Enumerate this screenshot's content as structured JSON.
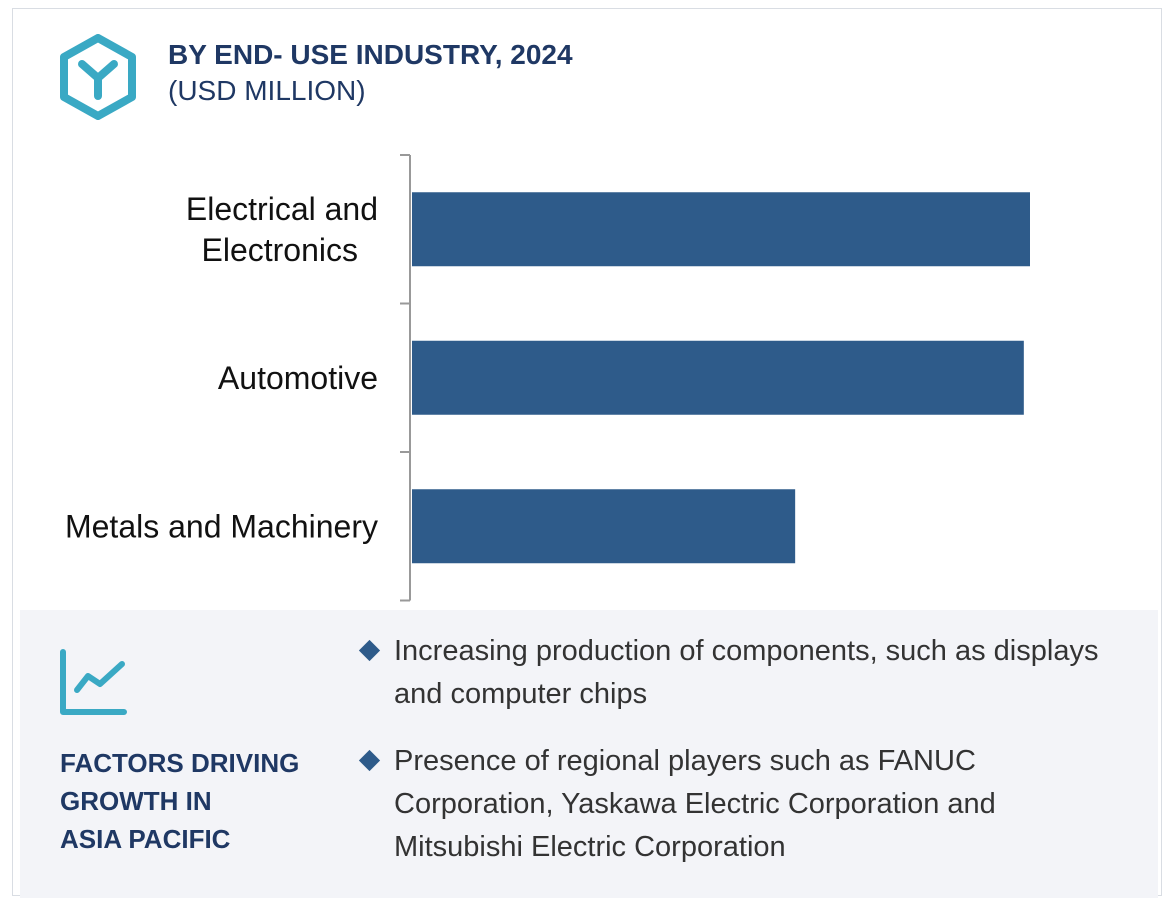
{
  "header": {
    "title": "BY END- USE INDUSTRY, 2024",
    "subtitle": "(USD MILLION)",
    "logo_icon": "hexagon-y-icon"
  },
  "chart_data": {
    "type": "bar",
    "orientation": "horizontal",
    "title": "BY END- USE INDUSTRY, 2024",
    "subtitle": "(USD MILLION)",
    "categories": [
      [
        "Electrical and",
        "Electronics"
      ],
      [
        "Automotive"
      ],
      [
        "Metals and Machinery"
      ]
    ],
    "values": [
      100,
      99,
      62
    ],
    "value_note": "relative bar lengths; no value axis or labels shown",
    "bar_color": "#2e5b8a",
    "grid": false,
    "legend": "none"
  },
  "factors": {
    "icon": "line-chart-icon",
    "title": "FACTORS DRIVING\nGROWTH IN\nASIA PACIFIC",
    "bullets": [
      "Increasing production of components, such as displays and computer chips",
      "Presence of regional players such as FANUC Corporation, Yaskawa Electric Corporation and Mitsubishi Electric Corporation"
    ]
  },
  "colors": {
    "title": "#1f3864",
    "accent": "#3aa9c4",
    "bar": "#2e5b8a",
    "panel": "#f3f4f8"
  }
}
